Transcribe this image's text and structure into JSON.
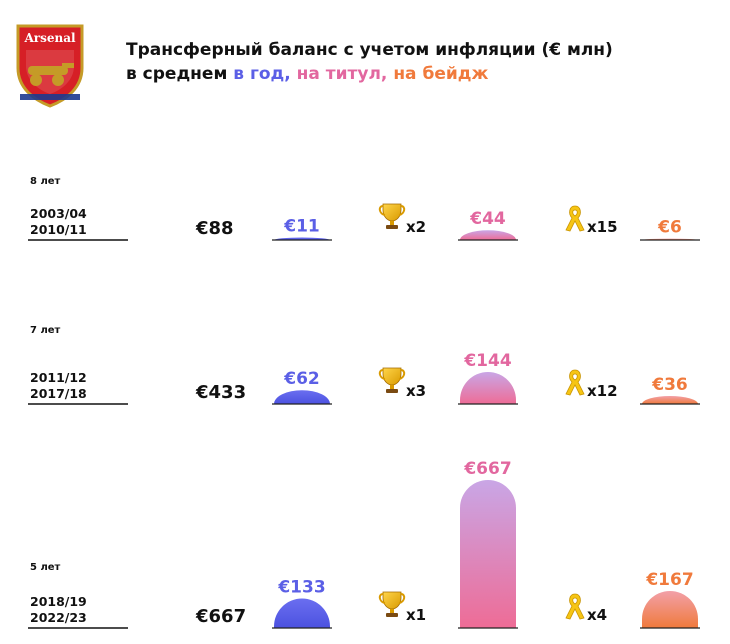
{
  "header": {
    "title_line1": "Трансферный баланс с учетом инфляции (€ млн)",
    "title_prefix": "в среднем",
    "per_year": "в год,",
    "per_title": "на титул,",
    "per_badge": "на бейдж",
    "logo_text": "Arsenal"
  },
  "colors": {
    "per_year": "#5b5fe6",
    "per_title": "#e2679f",
    "per_badge": "#f07a3c",
    "title_bar_top": "#c9a6e6"
  },
  "icons": {
    "trophy": "trophy-icon",
    "badge": "yellow-ribbon-icon"
  },
  "chart_data": {
    "type": "bar",
    "series": [
      {
        "name": "в год",
        "values": [
          11,
          62,
          133
        ]
      },
      {
        "name": "на титул",
        "values": [
          44,
          144,
          667
        ]
      },
      {
        "name": "на бейдж",
        "values": [
          6,
          36,
          167
        ]
      }
    ],
    "periods": [
      {
        "years": "8 лет",
        "seasons": [
          "2003/04",
          "2010/11"
        ],
        "total": "€88",
        "per_year": "€11",
        "titles": "x2",
        "per_title": "€44",
        "badges": "x15",
        "per_badge": "€6"
      },
      {
        "years": "7 лет",
        "seasons": [
          "2011/12",
          "2017/18"
        ],
        "total": "€433",
        "per_year": "€62",
        "titles": "x3",
        "per_title": "€144",
        "badges": "x12",
        "per_badge": "€36"
      },
      {
        "years": "5 лет",
        "seasons": [
          "2018/19",
          "2022/23"
        ],
        "total": "€667",
        "per_year": "€133",
        "titles": "x1",
        "per_title": "€667",
        "badges": "x4",
        "per_badge": "€167"
      }
    ]
  }
}
